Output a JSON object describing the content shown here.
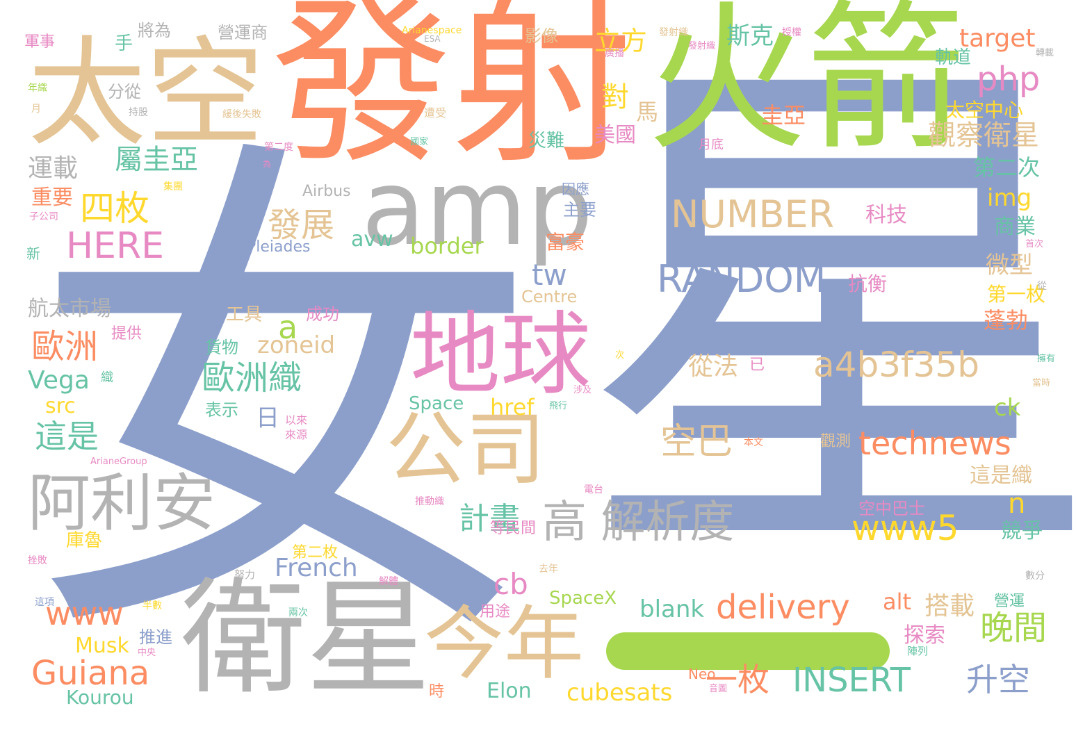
{
  "palette": {
    "blue": "#8c9fcb",
    "orange": "#fc8c62",
    "green": "#a7d74f",
    "tan": "#e4c494",
    "gray": "#b3b3b3",
    "pink": "#e78ac3",
    "teal": "#66c3a5",
    "yellow": "#ffd82e"
  },
  "words": [
    {
      "text": "星",
      "color": "blue"
    },
    {
      "text": "女",
      "color": "blue"
    },
    {
      "text": "發射",
      "color": "orange"
    },
    {
      "text": "火箭",
      "color": "green"
    },
    {
      "text": "太空",
      "color": "tan"
    },
    {
      "text": "amp",
      "color": "gray"
    },
    {
      "text": "衛星",
      "color": "gray"
    },
    {
      "text": "地球",
      "color": "pink"
    },
    {
      "text": "公司",
      "color": "tan"
    },
    {
      "text": "今年",
      "color": "tan"
    },
    {
      "text": "阿利安",
      "color": "gray"
    },
    {
      "text": "NUMBER",
      "color": "tan"
    },
    {
      "text": "RANDOM",
      "color": "blue"
    },
    {
      "text": "a4b3f35b",
      "color": "tan"
    },
    {
      "text": "technews",
      "color": "orange"
    },
    {
      "text": "delivery",
      "color": "orange"
    },
    {
      "text": "INSERT",
      "color": "teal"
    },
    {
      "text": "高 解析度",
      "color": "gray"
    },
    {
      "text": "HERE",
      "color": "pink"
    },
    {
      "text": "Guiana",
      "color": "orange"
    },
    {
      "text": "www5",
      "color": "yellow"
    },
    {
      "text": "www",
      "color": "orange"
    },
    {
      "text": "php",
      "color": "pink"
    },
    {
      "text": "target",
      "color": "orange"
    },
    {
      "text": "計畫",
      "color": "teal"
    },
    {
      "text": "一枚",
      "color": "orange"
    },
    {
      "text": "晚間",
      "color": "green"
    },
    {
      "text": "升空",
      "color": "blue"
    },
    {
      "text": "空巴",
      "color": "tan"
    },
    {
      "text": "歐洲織",
      "color": "teal"
    },
    {
      "text": "歐洲",
      "color": "orange"
    },
    {
      "text": "四枚",
      "color": "yellow"
    },
    {
      "text": "發展",
      "color": "tan"
    },
    {
      "text": "屬圭亞",
      "color": "teal"
    },
    {
      "text": "這是",
      "color": "teal"
    },
    {
      "text": "立方",
      "color": "yellow"
    },
    {
      "text": "斯克",
      "color": "teal"
    },
    {
      "text": "觀察衛星",
      "color": "tan"
    },
    {
      "text": "對",
      "color": "yellow"
    },
    {
      "text": "馬",
      "color": "tan"
    },
    {
      "text": "圭亞",
      "color": "orange"
    },
    {
      "text": "美國",
      "color": "pink"
    },
    {
      "text": "軌道",
      "color": "teal"
    },
    {
      "text": "太空中心",
      "color": "yellow"
    },
    {
      "text": "第二次",
      "color": "teal"
    },
    {
      "text": "img",
      "color": "yellow"
    },
    {
      "text": "商業",
      "color": "teal"
    },
    {
      "text": "微型",
      "color": "tan"
    },
    {
      "text": "第一枚",
      "color": "yellow"
    },
    {
      "text": "蓬勃",
      "color": "orange"
    },
    {
      "text": "ck",
      "color": "green"
    },
    {
      "text": "這是織",
      "color": "tan"
    },
    {
      "text": "競爭",
      "color": "teal"
    },
    {
      "text": "n",
      "color": "yellow"
    },
    {
      "text": "tw",
      "color": "blue"
    },
    {
      "text": "cb",
      "color": "pink"
    },
    {
      "text": "a",
      "color": "green"
    },
    {
      "text": "avw",
      "color": "teal"
    },
    {
      "text": "border",
      "color": "green"
    },
    {
      "text": "zoneid",
      "color": "tan"
    },
    {
      "text": "href",
      "color": "yellow"
    },
    {
      "text": "Vega",
      "color": "teal"
    },
    {
      "text": "src",
      "color": "yellow"
    },
    {
      "text": "French",
      "color": "blue"
    },
    {
      "text": "blank",
      "color": "teal"
    },
    {
      "text": "alt",
      "color": "orange"
    },
    {
      "text": "搭載",
      "color": "tan"
    },
    {
      "text": "探索",
      "color": "pink"
    },
    {
      "text": "cubesats",
      "color": "yellow"
    },
    {
      "text": "Elon",
      "color": "teal"
    },
    {
      "text": "Musk",
      "color": "yellow"
    },
    {
      "text": "Kourou",
      "color": "teal"
    },
    {
      "text": "SpaceX",
      "color": "green"
    },
    {
      "text": "Space",
      "color": "teal"
    },
    {
      "text": "Centre",
      "color": "tan"
    },
    {
      "text": "Pleiades",
      "color": "blue"
    },
    {
      "text": "Airbus",
      "color": "gray"
    },
    {
      "text": "運載",
      "color": "gray"
    },
    {
      "text": "重要",
      "color": "orange"
    },
    {
      "text": "航太市場",
      "color": "gray"
    },
    {
      "text": "科技",
      "color": "pink"
    },
    {
      "text": "抗衡",
      "color": "pink"
    },
    {
      "text": "從法",
      "color": "tan"
    },
    {
      "text": "日",
      "color": "blue"
    },
    {
      "text": "工具",
      "color": "tan"
    },
    {
      "text": "成功",
      "color": "pink"
    },
    {
      "text": "貨物",
      "color": "teal"
    },
    {
      "text": "表示",
      "color": "teal"
    },
    {
      "text": "富豪",
      "color": "orange"
    },
    {
      "text": "主要",
      "color": "blue"
    },
    {
      "text": "因應",
      "color": "blue"
    },
    {
      "text": "災難",
      "color": "teal"
    },
    {
      "text": "影像",
      "color": "tan"
    },
    {
      "text": "營運商",
      "color": "gray"
    },
    {
      "text": "將為",
      "color": "gray"
    },
    {
      "text": "手",
      "color": "teal"
    },
    {
      "text": "分從",
      "color": "gray"
    },
    {
      "text": "軍事",
      "color": "pink"
    },
    {
      "text": "提供",
      "color": "pink"
    },
    {
      "text": "第二枚",
      "color": "yellow"
    },
    {
      "text": "等民間",
      "color": "pink"
    },
    {
      "text": "庫魯",
      "color": "yellow"
    },
    {
      "text": "空中巴士",
      "color": "pink"
    },
    {
      "text": "觀測",
      "color": "tan"
    },
    {
      "text": "推進",
      "color": "blue"
    },
    {
      "text": "用途",
      "color": "pink"
    },
    {
      "text": "時",
      "color": "orange"
    },
    {
      "text": "營運",
      "color": "teal"
    },
    {
      "text": "織",
      "color": "teal"
    },
    {
      "text": "已",
      "color": "pink"
    },
    {
      "text": "以來",
      "color": "pink"
    },
    {
      "text": "來源",
      "color": "pink"
    },
    {
      "text": "Arianespace",
      "color": "yellow"
    },
    {
      "text": "ESA",
      "color": "gray"
    },
    {
      "text": "發射織",
      "color": "tan"
    },
    {
      "text": "授權",
      "color": "pink"
    },
    {
      "text": "廣播",
      "color": "pink"
    },
    {
      "text": "轉載",
      "color": "gray"
    },
    {
      "text": "持股",
      "color": "gray"
    },
    {
      "text": "遭受",
      "color": "tan"
    },
    {
      "text": "月底",
      "color": "pink"
    },
    {
      "text": "年織",
      "color": "green"
    },
    {
      "text": "月",
      "color": "tan"
    },
    {
      "text": "國家",
      "color": "teal"
    },
    {
      "text": "集團",
      "color": "yellow"
    },
    {
      "text": "子公司",
      "color": "pink"
    },
    {
      "text": "新",
      "color": "teal"
    },
    {
      "text": "首次",
      "color": "pink"
    },
    {
      "text": "從",
      "color": "gray"
    },
    {
      "text": "擁有",
      "color": "teal"
    },
    {
      "text": "當時",
      "color": "tan"
    },
    {
      "text": "涉及",
      "color": "pink"
    },
    {
      "text": "飛行",
      "color": "teal"
    },
    {
      "text": "次",
      "color": "yellow"
    },
    {
      "text": "本文",
      "color": "orange"
    },
    {
      "text": "ArianeGroup",
      "color": "pink"
    },
    {
      "text": "電台",
      "color": "pink"
    },
    {
      "text": "推動織",
      "color": "pink"
    },
    {
      "text": "去年",
      "color": "tan"
    },
    {
      "text": "解體",
      "color": "pink"
    },
    {
      "text": "努力",
      "color": "gray"
    },
    {
      "text": "數分",
      "color": "gray"
    },
    {
      "text": "挫敗",
      "color": "pink"
    },
    {
      "text": "這項",
      "color": "blue"
    },
    {
      "text": "半數",
      "color": "yellow"
    },
    {
      "text": "兩次",
      "color": "teal"
    },
    {
      "text": "中央",
      "color": "pink"
    },
    {
      "text": "陣列",
      "color": "teal"
    },
    {
      "text": "Neo",
      "color": "orange"
    },
    {
      "text": "發射織",
      "color": "pink"
    },
    {
      "text": "第二度",
      "color": "pink"
    },
    {
      "text": "為",
      "color": "pink"
    },
    {
      "text": "緩後失敗",
      "color": "tan"
    },
    {
      "text": "音圖",
      "color": "pink"
    }
  ]
}
